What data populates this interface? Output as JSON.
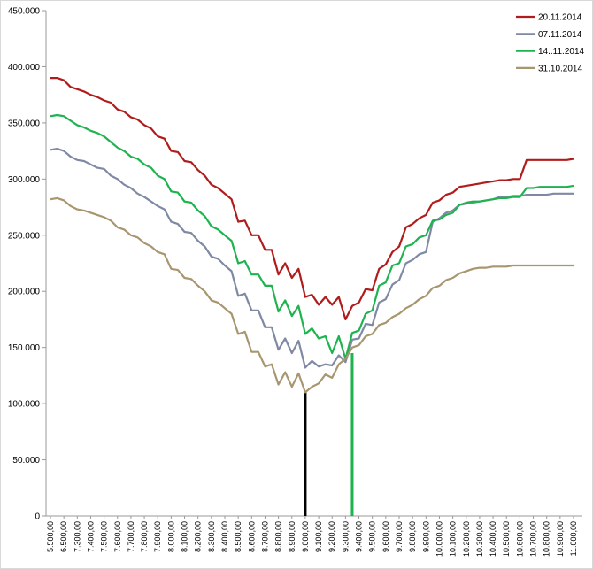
{
  "chart_data": {
    "type": "line",
    "categories": [
      "5.500,00",
      null,
      "6.500,00",
      null,
      "7.300,00",
      null,
      "7.400,00",
      null,
      "7.500,00",
      null,
      "7.600,00",
      null,
      "7.700,00",
      null,
      "7.800,00",
      null,
      "7.900,00",
      null,
      "8.000,00",
      null,
      "8.100,00",
      null,
      "8.200,00",
      null,
      "8.300,00",
      null,
      "8.400,00",
      null,
      "8.500,00",
      null,
      "8.600,00",
      null,
      "8.700,00",
      null,
      "8.800,00",
      null,
      "8.900,00",
      null,
      "9.000,00",
      null,
      "9.100,00",
      null,
      "9.200,00",
      null,
      "9.300,00",
      null,
      "9.400,00",
      null,
      "9.500,00",
      null,
      "9.600,00",
      null,
      "9.700,00",
      null,
      "9.800,00",
      null,
      "9.900,00",
      null,
      "10.000,00",
      null,
      "10.100,00",
      null,
      "10.200,00",
      null,
      "10.300,00",
      null,
      "10.400,00",
      null,
      "10.500,00",
      null,
      "10.600,00",
      null,
      "10.700,00",
      null,
      "10.800,00",
      null,
      "10.900,00",
      null,
      "11.000,00"
    ],
    "series": [
      {
        "name": "20.11.2014",
        "color": "#b01c1c",
        "values": [
          390000,
          390000,
          388000,
          382000,
          380000,
          378000,
          375000,
          373000,
          370000,
          368000,
          362000,
          360000,
          355000,
          353000,
          348000,
          345000,
          338000,
          336000,
          325000,
          324000,
          316000,
          315000,
          308000,
          303000,
          295000,
          292000,
          287000,
          282000,
          262000,
          263000,
          250000,
          250000,
          237000,
          237000,
          215000,
          225000,
          212000,
          220000,
          195000,
          197000,
          188000,
          195000,
          188000,
          195000,
          175000,
          187000,
          190000,
          202000,
          201000,
          220000,
          224000,
          235000,
          240000,
          257000,
          260000,
          265000,
          268000,
          279000,
          281000,
          286000,
          288000,
          293000,
          294000,
          295000,
          296000,
          297000,
          298000,
          299000,
          299000,
          300000,
          300000,
          317000,
          317000,
          317000,
          317000,
          317000,
          317000,
          317000,
          318000
        ]
      },
      {
        "name": "07.11.2014",
        "color": "#7f89a3",
        "values": [
          326000,
          327000,
          325000,
          320000,
          317000,
          316000,
          313000,
          310000,
          309000,
          303000,
          300000,
          295000,
          292000,
          287000,
          284000,
          280000,
          276000,
          273000,
          262000,
          260000,
          253000,
          252000,
          245000,
          240000,
          231000,
          229000,
          223000,
          218000,
          196000,
          198000,
          183000,
          183000,
          168000,
          168000,
          148000,
          158000,
          145000,
          156000,
          132000,
          138000,
          133000,
          135000,
          134000,
          143000,
          137000,
          157000,
          158000,
          171000,
          170000,
          190000,
          193000,
          206000,
          210000,
          225000,
          228000,
          233000,
          235000,
          262000,
          265000,
          270000,
          272000,
          277000,
          278000,
          279000,
          280000,
          281000,
          282000,
          284000,
          284000,
          285000,
          285000,
          286000,
          286000,
          286000,
          286000,
          287000,
          287000,
          287000,
          287000
        ]
      },
      {
        "name": "14..11.2014",
        "color": "#1fb350",
        "values": [
          356000,
          357000,
          356000,
          352000,
          348000,
          346000,
          343000,
          341000,
          338000,
          333000,
          328000,
          325000,
          320000,
          318000,
          313000,
          310000,
          303000,
          300000,
          289000,
          288000,
          280000,
          279000,
          272000,
          267000,
          258000,
          255000,
          250000,
          245000,
          225000,
          227000,
          215000,
          215000,
          205000,
          205000,
          182000,
          192000,
          178000,
          187000,
          162000,
          167000,
          158000,
          160000,
          145000,
          160000,
          140000,
          163000,
          165000,
          180000,
          183000,
          205000,
          208000,
          223000,
          225000,
          240000,
          242000,
          248000,
          250000,
          263000,
          264000,
          268000,
          270000,
          277000,
          279000,
          280000,
          280000,
          281000,
          282000,
          283000,
          283000,
          284000,
          284000,
          292000,
          292000,
          293000,
          293000,
          293000,
          293000,
          293000,
          294000
        ]
      },
      {
        "name": "31.10.2014",
        "color": "#a8966f",
        "values": [
          282000,
          283000,
          281000,
          276000,
          273000,
          272000,
          270000,
          268000,
          266000,
          263000,
          257000,
          255000,
          250000,
          248000,
          243000,
          240000,
          235000,
          233000,
          220000,
          219000,
          212000,
          211000,
          205000,
          200000,
          192000,
          190000,
          185000,
          180000,
          162000,
          164000,
          146000,
          146000,
          133000,
          135000,
          117000,
          128000,
          115000,
          127000,
          110000,
          115000,
          118000,
          126000,
          123000,
          135000,
          140000,
          150000,
          152000,
          160000,
          162000,
          170000,
          172000,
          177000,
          180000,
          185000,
          188000,
          193000,
          196000,
          203000,
          205000,
          210000,
          212000,
          216000,
          218000,
          220000,
          221000,
          221000,
          222000,
          222000,
          222000,
          223000,
          223000,
          223000,
          223000,
          223000,
          223000,
          223000,
          223000,
          223000,
          223000
        ]
      }
    ],
    "bars": [
      {
        "color": "#000000",
        "values": [
          null,
          null,
          null,
          null,
          null,
          null,
          null,
          null,
          null,
          null,
          null,
          null,
          null,
          null,
          null,
          null,
          null,
          null,
          null,
          null,
          null,
          null,
          null,
          null,
          null,
          null,
          null,
          null,
          null,
          null,
          null,
          null,
          null,
          null,
          null,
          null,
          null,
          null,
          110000,
          null,
          null,
          null,
          null,
          null,
          null,
          null,
          null,
          null,
          null,
          null,
          null,
          null,
          null,
          null,
          null,
          null,
          null,
          null,
          null,
          null,
          null,
          null,
          null,
          null,
          null,
          null,
          null,
          null,
          null,
          null,
          null,
          null,
          null,
          null,
          null,
          null,
          null,
          null,
          null
        ]
      },
      {
        "color": "#1fb350",
        "values": [
          null,
          null,
          null,
          null,
          null,
          null,
          null,
          null,
          null,
          null,
          null,
          null,
          null,
          null,
          null,
          null,
          null,
          null,
          null,
          null,
          null,
          null,
          null,
          null,
          null,
          null,
          null,
          null,
          null,
          null,
          null,
          null,
          null,
          null,
          null,
          null,
          null,
          null,
          null,
          null,
          null,
          null,
          null,
          null,
          null,
          145000,
          null,
          null,
          null,
          null,
          null,
          null,
          null,
          null,
          null,
          null,
          null,
          null,
          null,
          null,
          null,
          null,
          null,
          null,
          null,
          null,
          null,
          null,
          null,
          null,
          null,
          null,
          null,
          null,
          null,
          null,
          null,
          null,
          null
        ]
      }
    ],
    "ylim": [
      0,
      450000
    ],
    "yticks": [
      0,
      {
        "value": 50000,
        "label": "50.000"
      },
      {
        "value": 100000,
        "label": "100.000"
      },
      {
        "value": 150000,
        "label": "150.000"
      },
      {
        "value": 200000,
        "label": "200.000"
      },
      {
        "value": 250000,
        "label": "250.000"
      },
      {
        "value": 300000,
        "label": "300.000"
      },
      {
        "value": 350000,
        "label": "350.000"
      },
      {
        "value": 400000,
        "label": "400.000"
      },
      {
        "value": 450000,
        "label": "450.000"
      }
    ],
    "grid": false,
    "legend": "top-right"
  }
}
